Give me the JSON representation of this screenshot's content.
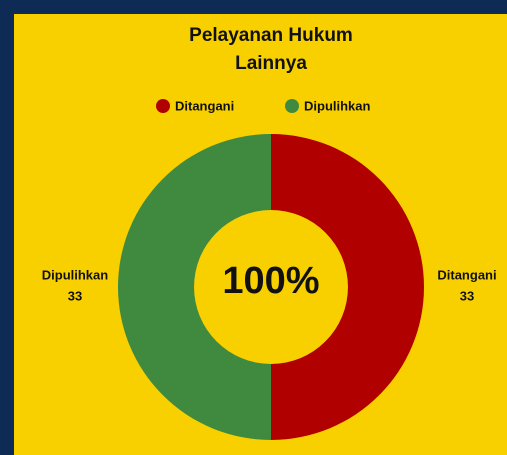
{
  "chart_data": {
    "type": "pie",
    "title": "Pelayanan Hukum Lainnya",
    "categories": [
      "Ditangani",
      "Dipulihkan"
    ],
    "values": [
      33,
      33
    ],
    "colors": [
      "#b10000",
      "#3f8a3f"
    ],
    "center_label": "100%",
    "legend": "top",
    "donut": true
  }
}
